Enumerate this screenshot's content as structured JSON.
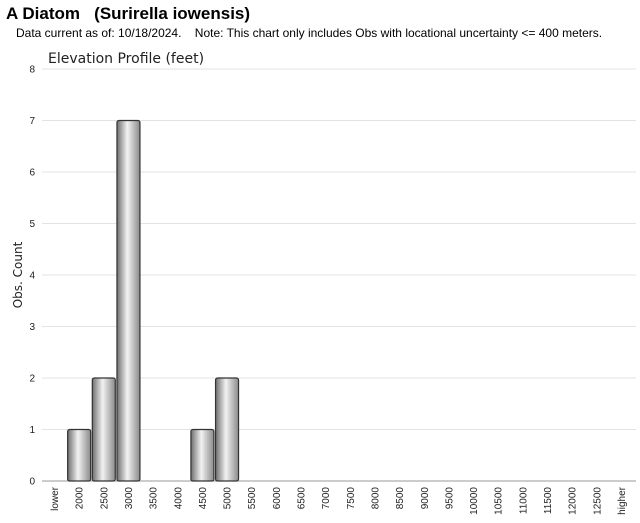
{
  "header": {
    "title": "A Diatom   (Surirella iowensis)",
    "note": "Data current as of: 10/18/2024.    Note: This chart only includes Obs with locational uncertainty <= 400 meters."
  },
  "colors": {
    "bar_fill_dark": "#6e6e6e",
    "bar_fill_light": "#f2f2f2",
    "bar_stroke": "#333333",
    "grid": "#e3e3e3"
  },
  "chart_data": {
    "type": "bar",
    "title": "Elevation Profile (feet)",
    "xlabel": "",
    "ylabel": "Obs. Count",
    "categories": [
      "lower",
      "2000",
      "2500",
      "3000",
      "3500",
      "4000",
      "4500",
      "5000",
      "5500",
      "6000",
      "6500",
      "7000",
      "7500",
      "8000",
      "8500",
      "9000",
      "9500",
      "10000",
      "10500",
      "11000",
      "11500",
      "12000",
      "12500",
      "higher"
    ],
    "values": [
      0,
      1,
      2,
      7,
      0,
      0,
      1,
      2,
      0,
      0,
      0,
      0,
      0,
      0,
      0,
      0,
      0,
      0,
      0,
      0,
      0,
      0,
      0,
      0
    ],
    "ylim": [
      0,
      8
    ],
    "yticks": [
      0,
      1,
      2,
      3,
      4,
      5,
      6,
      7,
      8
    ],
    "grid": true,
    "legend": "none"
  }
}
